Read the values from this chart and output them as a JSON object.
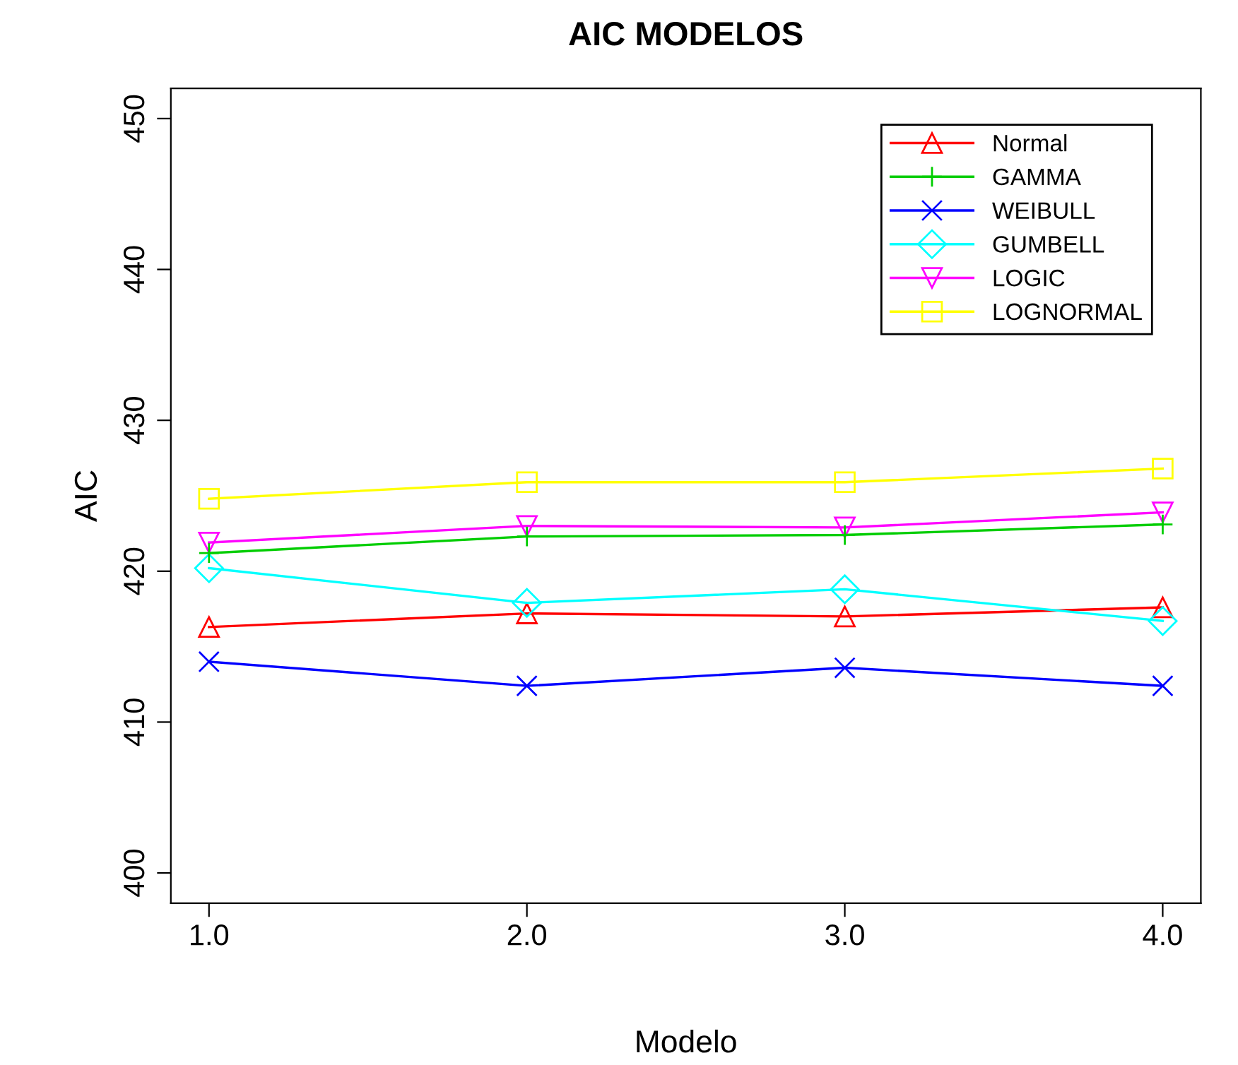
{
  "chart_data": {
    "type": "line",
    "title": "AIC MODELOS",
    "xlabel": "Modelo",
    "ylabel": "AIC",
    "x": [
      1,
      2,
      3,
      4
    ],
    "xlim": [
      0.88,
      4.12
    ],
    "xticks": [
      {
        "value": 1,
        "label": "1.0"
      },
      {
        "value": 2,
        "label": "2.0"
      },
      {
        "value": 3,
        "label": "3.0"
      },
      {
        "value": 4,
        "label": "4.0"
      }
    ],
    "ylim": [
      398,
      452
    ],
    "yticks": [
      400,
      410,
      420,
      430,
      440,
      450
    ],
    "grid": false,
    "legend": "top right",
    "series": [
      {
        "name": "Normal",
        "color": "#ff0000",
        "marker": "triangle",
        "values": [
          416.3,
          417.2,
          417.0,
          417.6
        ]
      },
      {
        "name": "GAMMA",
        "color": "#00cd00",
        "marker": "cross",
        "values": [
          421.2,
          422.3,
          422.4,
          423.1
        ]
      },
      {
        "name": "WEIBULL",
        "color": "#0000ff",
        "marker": "x",
        "values": [
          414.0,
          412.4,
          413.6,
          412.4
        ]
      },
      {
        "name": "GUMBELL",
        "color": "#00ffff",
        "marker": "diamond",
        "values": [
          420.2,
          417.9,
          418.8,
          416.7
        ]
      },
      {
        "name": "LOGIC",
        "color": "#ff00ff",
        "marker": "triangle_down",
        "values": [
          421.9,
          423.0,
          422.9,
          423.9
        ]
      },
      {
        "name": "LOGNORMAL",
        "color": "#ffff00",
        "marker": "square",
        "values": [
          424.8,
          425.9,
          425.9,
          426.8
        ]
      }
    ]
  }
}
